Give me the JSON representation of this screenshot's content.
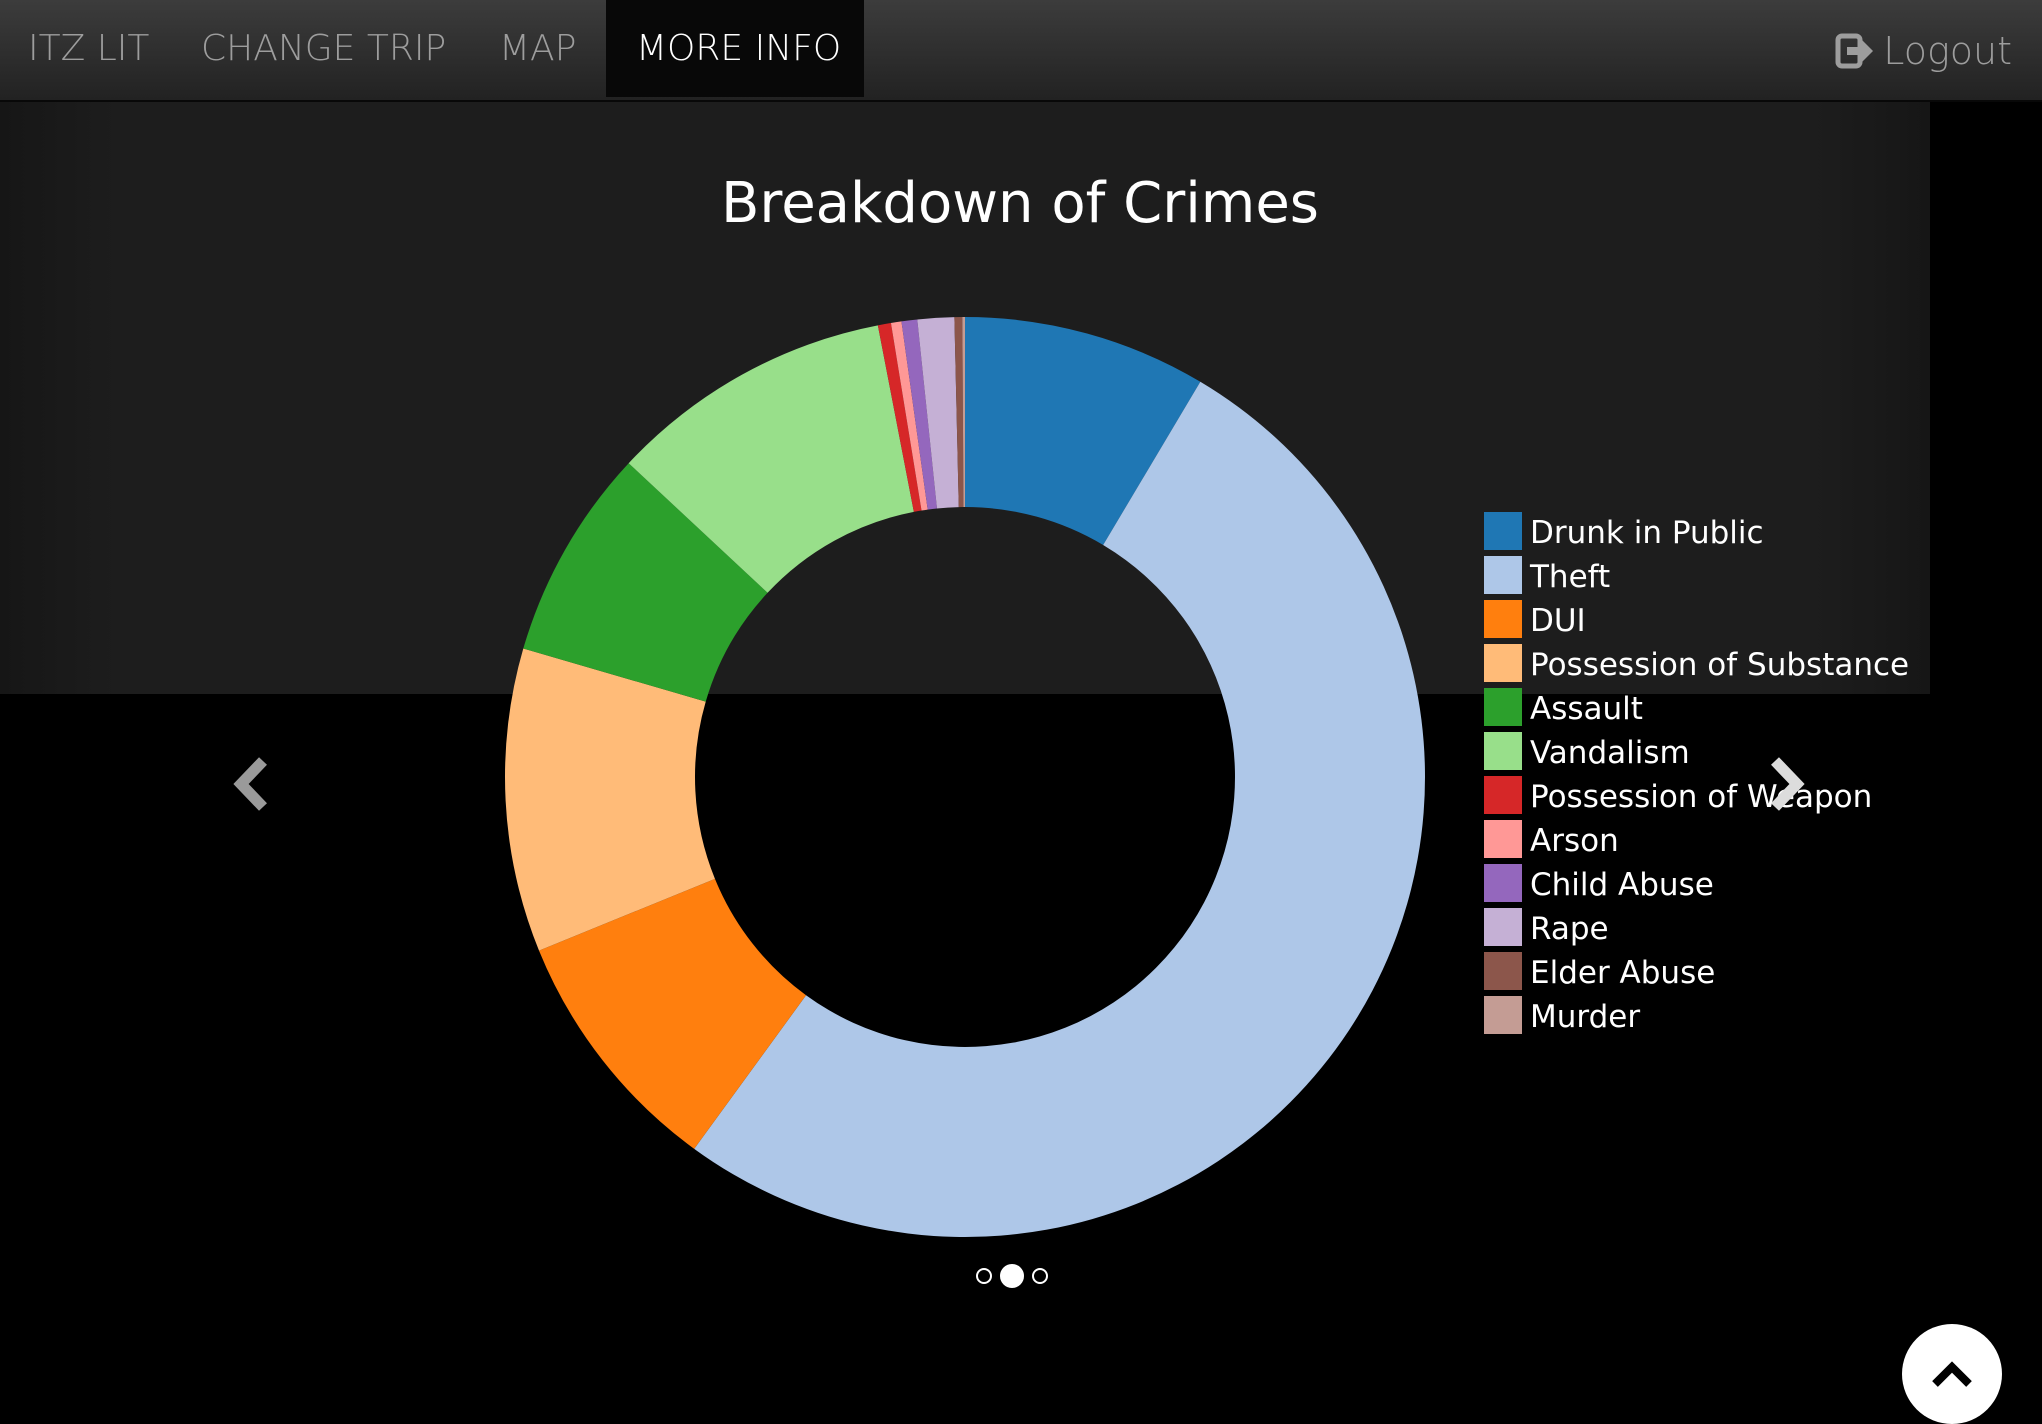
{
  "nav": {
    "items": [
      {
        "label": "ITZ LIT",
        "active": false
      },
      {
        "label": "CHANGE TRIP",
        "active": false
      },
      {
        "label": "MAP",
        "active": false
      },
      {
        "label": "MORE INFO",
        "active": true
      }
    ],
    "logout_label": "Logout"
  },
  "icons": {
    "logout": "logout-icon",
    "prev": "chevron-left-icon",
    "next": "chevron-right-icon",
    "scroll_top": "chevron-up-icon"
  },
  "carousel": {
    "indicator_count": 3,
    "active_index": 1
  },
  "chart_data": {
    "type": "pie",
    "donut": true,
    "title": "Breakdown of Crimes",
    "legend_position": "right",
    "slices": [
      {
        "label": "Drunk in Public",
        "value": 9.3,
        "color": "#1f77b4"
      },
      {
        "label": "Theft",
        "value": 56.0,
        "color": "#aec7e8"
      },
      {
        "label": "DUI",
        "value": 9.6,
        "color": "#ff7f0e"
      },
      {
        "label": "Possession of Substance",
        "value": 11.6,
        "color": "#ffbb78"
      },
      {
        "label": "Assault",
        "value": 8.1,
        "color": "#2ca02c"
      },
      {
        "label": "Vandalism",
        "value": 10.9,
        "color": "#98df8a"
      },
      {
        "label": "Possession of Weapon",
        "value": 0.5,
        "color": "#d62728"
      },
      {
        "label": "Arson",
        "value": 0.4,
        "color": "#ff9896"
      },
      {
        "label": "Child Abuse",
        "value": 0.6,
        "color": "#9467bd"
      },
      {
        "label": "Rape",
        "value": 1.4,
        "color": "#c5b0d5"
      },
      {
        "label": "Elder Abuse",
        "value": 0.3,
        "color": "#8c564b"
      },
      {
        "label": "Murder",
        "value": 0.1,
        "color": "#c49c94"
      }
    ]
  }
}
